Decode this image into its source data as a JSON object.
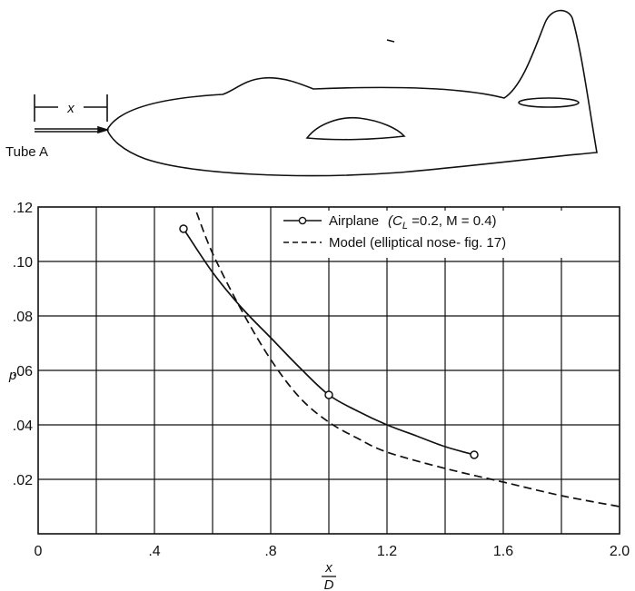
{
  "figure": {
    "tube_label": "Tube A",
    "dimension_label": "x"
  },
  "chart_data": {
    "type": "line",
    "title": "",
    "xlabel_num": "x",
    "xlabel_den": "D",
    "ylabel": "p",
    "xlim": [
      0,
      2.0
    ],
    "ylim": [
      0,
      0.12
    ],
    "grid": true,
    "legend_position": "top-right",
    "x_ticks": [
      {
        "v": 0,
        "label": "0"
      },
      {
        "v": 0.4,
        "label": ".4"
      },
      {
        "v": 0.8,
        "label": ".8"
      },
      {
        "v": 1.2,
        "label": "1.2"
      },
      {
        "v": 1.6,
        "label": "1.6"
      },
      {
        "v": 2.0,
        "label": "2.0"
      }
    ],
    "y_ticks": [
      {
        "v": 0.02,
        "label": ".02"
      },
      {
        "v": 0.04,
        "label": ".04"
      },
      {
        "v": 0.06,
        "label": ".06"
      },
      {
        "v": 0.08,
        "label": ".08"
      },
      {
        "v": 0.1,
        "label": ".10"
      },
      {
        "v": 0.12,
        "label": ".12"
      }
    ],
    "series": [
      {
        "name": "Airplane (C_L = 0.2, M = 0.4)",
        "legend_text": "Airplane",
        "legend_params": "(C",
        "legend_sub": "L",
        "legend_rest": " =0.2,  M = 0.4)",
        "style": "solid-markers",
        "markers": [
          {
            "x": 0.5,
            "y": 0.112
          },
          {
            "x": 1.0,
            "y": 0.051
          },
          {
            "x": 1.5,
            "y": 0.029
          }
        ],
        "curve": [
          {
            "x": 0.5,
            "y": 0.112
          },
          {
            "x": 0.6,
            "y": 0.096
          },
          {
            "x": 0.7,
            "y": 0.083
          },
          {
            "x": 0.8,
            "y": 0.072
          },
          {
            "x": 0.9,
            "y": 0.061
          },
          {
            "x": 1.0,
            "y": 0.051
          },
          {
            "x": 1.1,
            "y": 0.045
          },
          {
            "x": 1.2,
            "y": 0.04
          },
          {
            "x": 1.3,
            "y": 0.036
          },
          {
            "x": 1.4,
            "y": 0.032
          },
          {
            "x": 1.5,
            "y": 0.029
          }
        ]
      },
      {
        "name": "Model (elliptical nose-fig. 17)",
        "legend_text": "Model  (elliptical  nose- fig. 17)",
        "style": "dashed",
        "curve": [
          {
            "x": 0.545,
            "y": 0.118
          },
          {
            "x": 0.6,
            "y": 0.103
          },
          {
            "x": 0.7,
            "y": 0.082
          },
          {
            "x": 0.8,
            "y": 0.064
          },
          {
            "x": 0.9,
            "y": 0.05
          },
          {
            "x": 1.0,
            "y": 0.041
          },
          {
            "x": 1.1,
            "y": 0.035
          },
          {
            "x": 1.2,
            "y": 0.03
          },
          {
            "x": 1.4,
            "y": 0.024
          },
          {
            "x": 1.6,
            "y": 0.019
          },
          {
            "x": 1.8,
            "y": 0.014
          },
          {
            "x": 2.0,
            "y": 0.01
          }
        ]
      }
    ]
  }
}
